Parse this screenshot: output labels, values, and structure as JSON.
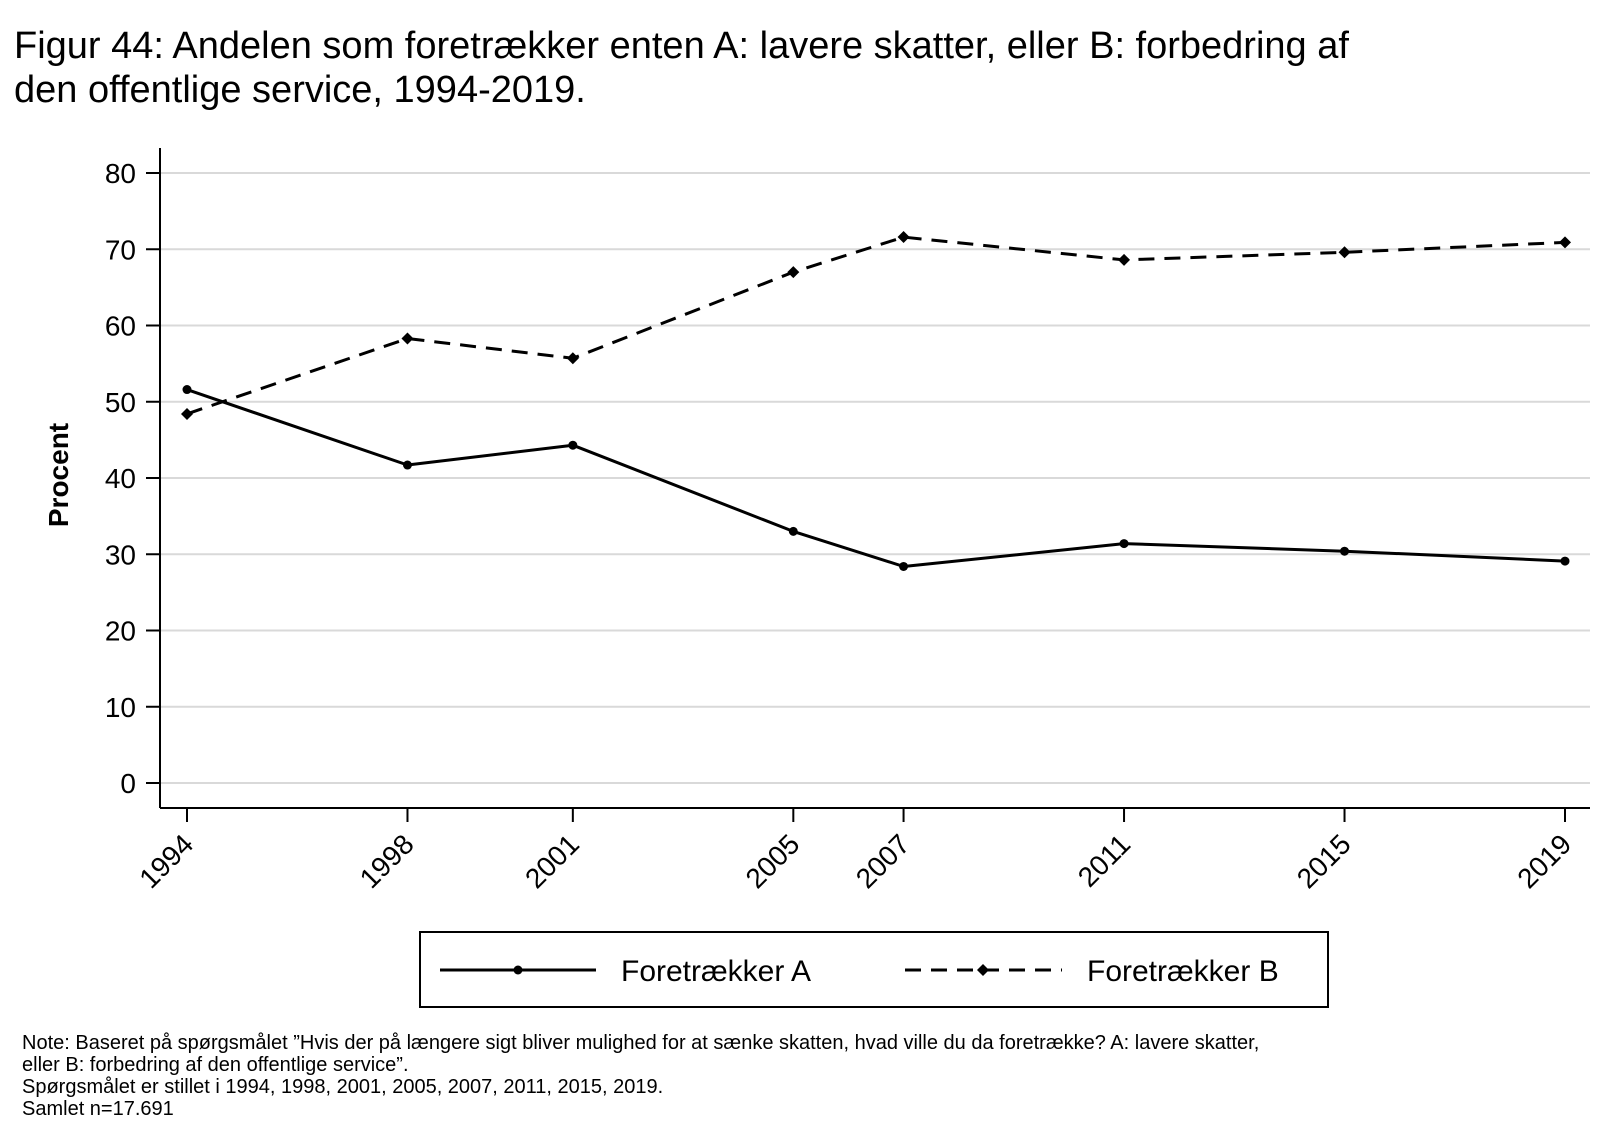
{
  "title_lines": [
    "Figur 44: Andelen som foretrækker enten A: lavere skatter, eller B: forbedring af",
    "den offentlige service, 1994-2019."
  ],
  "note_lines": [
    "Note: Baseret på spørgsmålet ”Hvis der på længere sigt bliver mulighed for at sænke skatten, hvad ville du da foretrække? A: lavere skatter,",
    "eller B: forbedring af den offentlige service”.",
    "Spørgsmålet er stillet i 1994, 1998, 2001, 2005, 2007, 2011, 2015, 2019.",
    "Samlet n=17.691"
  ],
  "chart_data": {
    "type": "line",
    "title": "Figur 44: Andelen som foretrækker enten A: lavere skatter, eller B: forbedring af den offentlige service, 1994-2019.",
    "xlabel": "",
    "ylabel": "Procent",
    "x": [
      1994,
      1998,
      2001,
      2005,
      2007,
      2011,
      2015,
      2019
    ],
    "x_tick_labels": [
      "1994",
      "1998",
      "2001",
      "2005",
      "2007",
      "2011",
      "2015",
      "2019"
    ],
    "ylim": [
      0,
      80
    ],
    "y_ticks": [
      0,
      10,
      20,
      30,
      40,
      50,
      60,
      70,
      80
    ],
    "grid": true,
    "legend_position": "bottom",
    "series": [
      {
        "name": "Foretrækker A",
        "style": "solid",
        "marker": "circle",
        "color": "#000000",
        "values": [
          51.6,
          41.7,
          44.3,
          33.0,
          28.4,
          31.4,
          30.4,
          29.1
        ]
      },
      {
        "name": "Foretrækker B",
        "style": "dashed",
        "marker": "diamond",
        "color": "#000000",
        "values": [
          48.4,
          58.3,
          55.7,
          67.0,
          71.6,
          68.6,
          69.6,
          70.9
        ]
      }
    ]
  }
}
